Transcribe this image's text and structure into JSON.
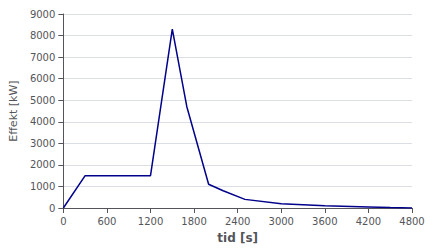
{
  "chart_data": {
    "type": "line",
    "xlabel": "tid [s]",
    "ylabel": "Effekt [kW]",
    "x": [
      0,
      300,
      500,
      1100,
      1200,
      1500,
      1700,
      2000,
      2200,
      2500,
      3000,
      3600,
      4200,
      4500,
      4800
    ],
    "values": [
      0,
      1500,
      1500,
      1500,
      1500,
      8300,
      4700,
      1100,
      800,
      400,
      200,
      100,
      50,
      20,
      0
    ],
    "color": "#00008B",
    "xlim": [
      0,
      4800
    ],
    "ylim": [
      0,
      9000
    ],
    "xticks": [
      0,
      600,
      1200,
      1800,
      2400,
      3000,
      3600,
      4200,
      4800
    ],
    "yticks": [
      0,
      1000,
      2000,
      3000,
      4000,
      5000,
      6000,
      7000,
      8000,
      9000
    ],
    "grid": true
  }
}
